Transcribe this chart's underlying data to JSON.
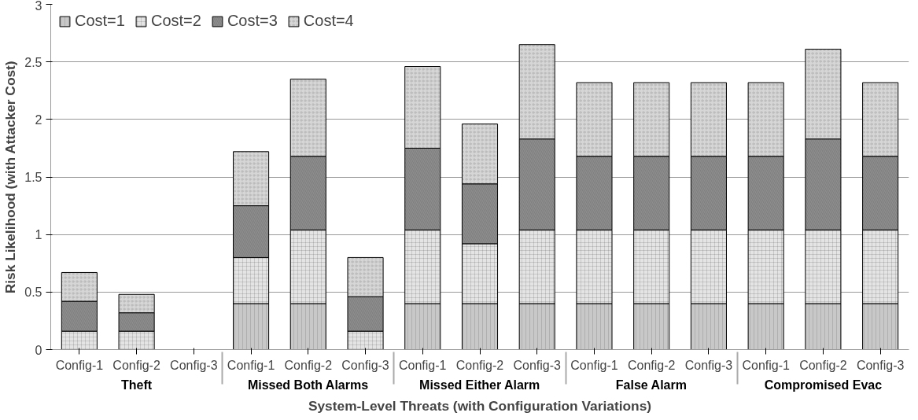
{
  "chart_data": {
    "type": "bar",
    "stacked": true,
    "xlabel": "System-Level Threats (with Configuration Variations)",
    "ylabel": "Risk Likelihood (with Attacker Cost)",
    "categories": [
      "Config-1",
      "Config-2",
      "Config-3",
      "Config-1",
      "Config-2",
      "Config-3",
      "Config-1",
      "Config-2",
      "Config-3",
      "Config-1",
      "Config-2",
      "Config-3",
      "Config-1",
      "Config-2",
      "Config-3"
    ],
    "annotations": [
      "Theft",
      "Missed Both Alarms",
      "Missed Either Alarm",
      "False Alarm",
      "Compromised Evac"
    ],
    "series": [
      {
        "name": "Cost=1",
        "color": "#c8c8c8",
        "values": [
          null,
          null,
          null,
          0.4,
          0.4,
          null,
          0.4,
          0.4,
          0.4,
          0.4,
          0.4,
          0.4,
          0.4,
          0.4,
          0.4
        ]
      },
      {
        "name": "Cost=2",
        "color": "#e4e4e4",
        "values": [
          0.16,
          0.16,
          null,
          0.4,
          0.64,
          0.16,
          0.64,
          0.52,
          0.64,
          0.64,
          0.64,
          0.64,
          0.64,
          0.64,
          0.64
        ]
      },
      {
        "name": "Cost=3",
        "color": "#8e8e8e",
        "values": [
          0.26,
          0.16,
          null,
          0.45,
          0.64,
          0.3,
          0.71,
          0.52,
          0.79,
          0.64,
          0.64,
          0.64,
          0.64,
          0.79,
          0.64
        ]
      },
      {
        "name": "Cost=4",
        "color": "#d6d6d6",
        "values": [
          0.25,
          0.16,
          null,
          0.47,
          0.67,
          0.34,
          0.71,
          0.52,
          0.82,
          0.64,
          0.64,
          0.64,
          0.64,
          0.78,
          0.64
        ]
      }
    ],
    "ylim": [
      0,
      3
    ],
    "yticks": [
      0,
      0.5,
      1,
      1.5,
      2,
      2.5,
      3
    ],
    "grid": "y",
    "legend": "top left"
  }
}
